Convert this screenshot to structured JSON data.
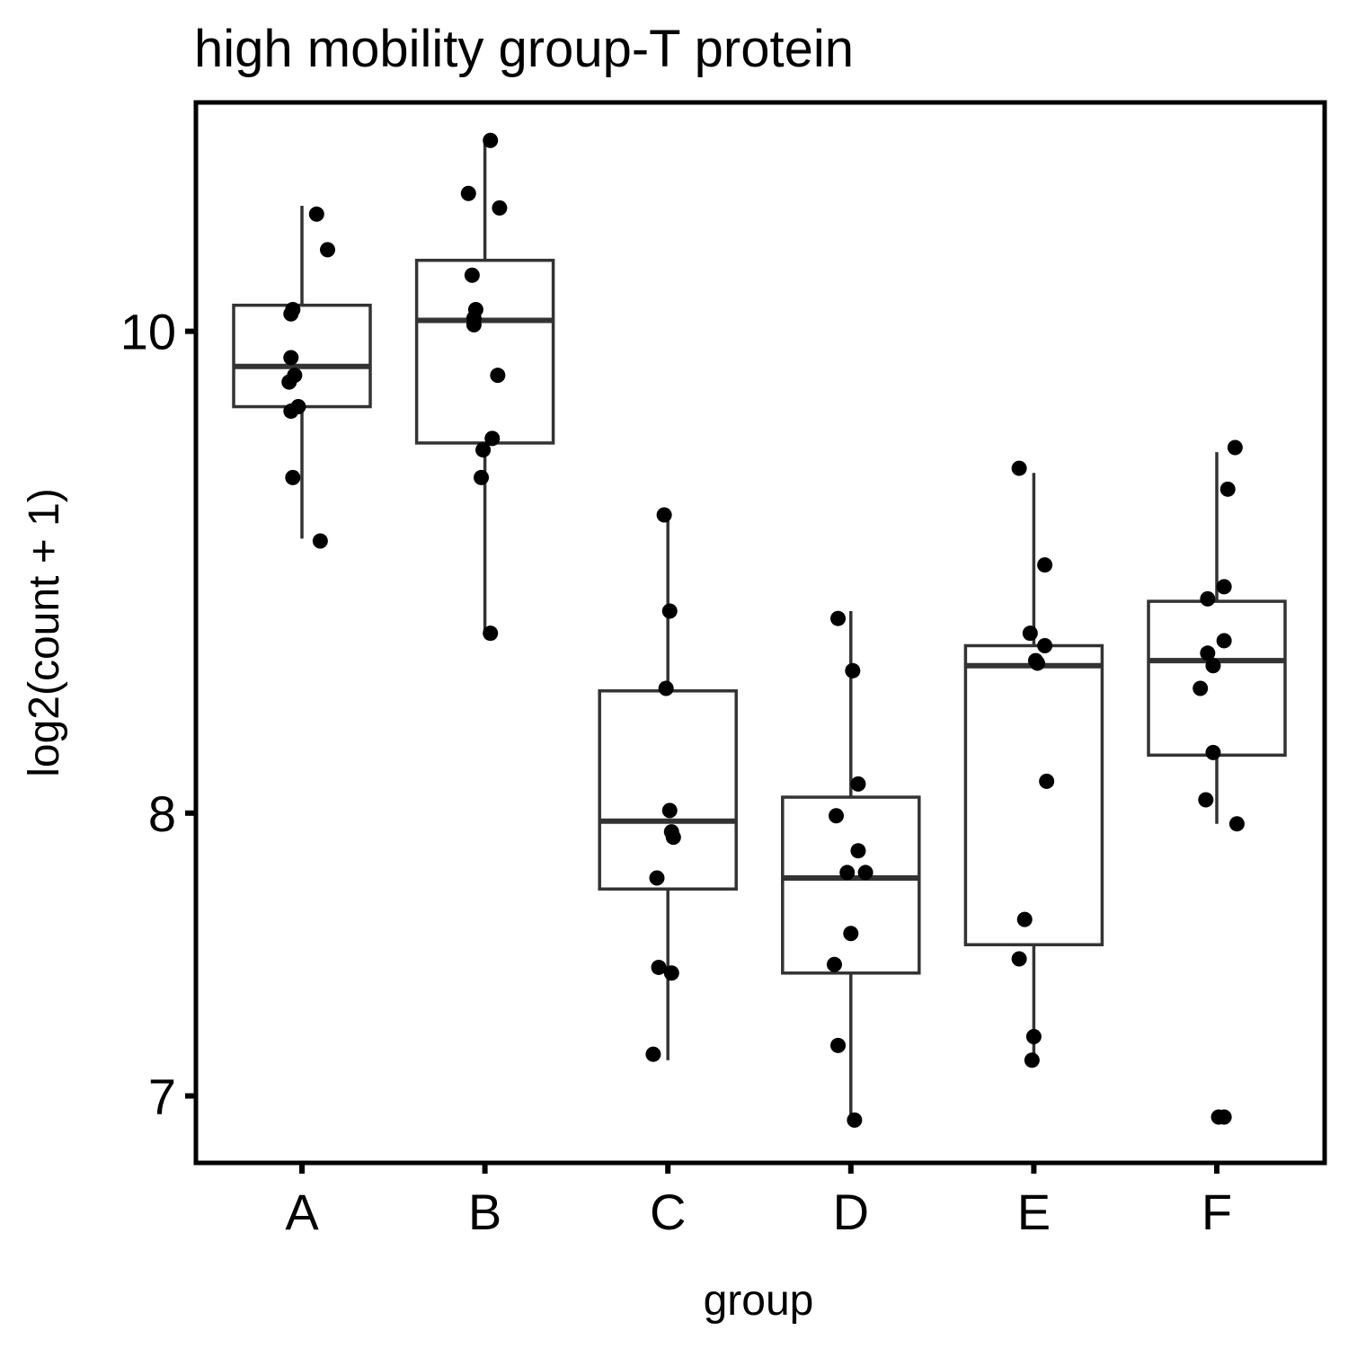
{
  "chart_data": {
    "type": "boxplot",
    "title": "high mobility group-T protein",
    "xlabel": "group",
    "ylabel": "log2(count + 1)",
    "y_scale": "log2",
    "ylim": [
      6.78,
      11.1
    ],
    "yticks": [
      7,
      8,
      10
    ],
    "grid": false,
    "categories": [
      "A",
      "B",
      "C",
      "D",
      "E",
      "F"
    ],
    "boxes": [
      {
        "group": "A",
        "whisker_low": 9.09,
        "q1": 9.66,
        "median": 9.84,
        "q3": 10.12,
        "whisker_high": 10.59
      },
      {
        "group": "B",
        "whisker_low": 8.7,
        "q1": 9.5,
        "median": 10.05,
        "q3": 10.33,
        "whisker_high": 10.9
      },
      {
        "group": "C",
        "whisker_low": 7.12,
        "q1": 7.72,
        "median": 7.97,
        "q3": 8.47,
        "whisker_high": 9.18
      },
      {
        "group": "D",
        "whisker_low": 6.92,
        "q1": 7.42,
        "median": 7.76,
        "q3": 8.06,
        "whisker_high": 8.79
      },
      {
        "group": "E",
        "whisker_low": 7.13,
        "q1": 7.52,
        "median": 8.57,
        "q3": 8.65,
        "whisker_high": 9.37
      },
      {
        "group": "F",
        "whisker_low": 7.96,
        "q1": 8.22,
        "median": 8.59,
        "q3": 8.83,
        "whisker_high": 9.46
      }
    ],
    "points": [
      {
        "group": "A",
        "jitter": 0.08,
        "y": 10.55
      },
      {
        "group": "A",
        "jitter": 0.14,
        "y": 10.38
      },
      {
        "group": "A",
        "jitter": -0.05,
        "y": 10.1
      },
      {
        "group": "A",
        "jitter": -0.06,
        "y": 10.08
      },
      {
        "group": "A",
        "jitter": -0.06,
        "y": 9.88
      },
      {
        "group": "A",
        "jitter": -0.04,
        "y": 9.8
      },
      {
        "group": "A",
        "jitter": -0.07,
        "y": 9.77
      },
      {
        "group": "A",
        "jitter": -0.02,
        "y": 9.66
      },
      {
        "group": "A",
        "jitter": -0.06,
        "y": 9.64
      },
      {
        "group": "A",
        "jitter": -0.05,
        "y": 9.35
      },
      {
        "group": "A",
        "jitter": 0.1,
        "y": 9.08
      },
      {
        "group": "B",
        "jitter": 0.03,
        "y": 10.91
      },
      {
        "group": "B",
        "jitter": -0.09,
        "y": 10.65
      },
      {
        "group": "B",
        "jitter": 0.08,
        "y": 10.58
      },
      {
        "group": "B",
        "jitter": -0.07,
        "y": 10.26
      },
      {
        "group": "B",
        "jitter": -0.05,
        "y": 10.1
      },
      {
        "group": "B",
        "jitter": -0.06,
        "y": 10.06
      },
      {
        "group": "B",
        "jitter": -0.06,
        "y": 10.03
      },
      {
        "group": "B",
        "jitter": 0.07,
        "y": 9.8
      },
      {
        "group": "B",
        "jitter": 0.04,
        "y": 9.52
      },
      {
        "group": "B",
        "jitter": -0.01,
        "y": 9.47
      },
      {
        "group": "B",
        "jitter": -0.02,
        "y": 9.35
      },
      {
        "group": "B",
        "jitter": 0.03,
        "y": 8.7
      },
      {
        "group": "C",
        "jitter": -0.02,
        "y": 9.19
      },
      {
        "group": "C",
        "jitter": 0.01,
        "y": 8.79
      },
      {
        "group": "C",
        "jitter": -0.01,
        "y": 8.48
      },
      {
        "group": "C",
        "jitter": 0.01,
        "y": 8.01
      },
      {
        "group": "C",
        "jitter": 0.02,
        "y": 7.93
      },
      {
        "group": "C",
        "jitter": 0.03,
        "y": 7.91
      },
      {
        "group": "C",
        "jitter": -0.06,
        "y": 7.76
      },
      {
        "group": "C",
        "jitter": -0.05,
        "y": 7.44
      },
      {
        "group": "C",
        "jitter": 0.02,
        "y": 7.42
      },
      {
        "group": "C",
        "jitter": -0.08,
        "y": 7.14
      },
      {
        "group": "D",
        "jitter": -0.07,
        "y": 8.76
      },
      {
        "group": "D",
        "jitter": 0.01,
        "y": 8.55
      },
      {
        "group": "D",
        "jitter": 0.04,
        "y": 8.11
      },
      {
        "group": "D",
        "jitter": -0.08,
        "y": 7.99
      },
      {
        "group": "D",
        "jitter": 0.04,
        "y": 7.86
      },
      {
        "group": "D",
        "jitter": -0.02,
        "y": 7.78
      },
      {
        "group": "D",
        "jitter": 0.08,
        "y": 7.78
      },
      {
        "group": "D",
        "jitter": 0.0,
        "y": 7.56
      },
      {
        "group": "D",
        "jitter": -0.09,
        "y": 7.45
      },
      {
        "group": "D",
        "jitter": -0.07,
        "y": 7.17
      },
      {
        "group": "D",
        "jitter": 0.02,
        "y": 6.92
      },
      {
        "group": "E",
        "jitter": -0.08,
        "y": 9.39
      },
      {
        "group": "E",
        "jitter": 0.06,
        "y": 8.98
      },
      {
        "group": "E",
        "jitter": -0.02,
        "y": 8.7
      },
      {
        "group": "E",
        "jitter": 0.06,
        "y": 8.65
      },
      {
        "group": "E",
        "jitter": 0.01,
        "y": 8.59
      },
      {
        "group": "E",
        "jitter": 0.02,
        "y": 8.58
      },
      {
        "group": "E",
        "jitter": 0.07,
        "y": 8.12
      },
      {
        "group": "E",
        "jitter": -0.05,
        "y": 7.61
      },
      {
        "group": "E",
        "jitter": -0.08,
        "y": 7.47
      },
      {
        "group": "E",
        "jitter": 0.0,
        "y": 7.2
      },
      {
        "group": "E",
        "jitter": -0.01,
        "y": 7.12
      },
      {
        "group": "F",
        "jitter": 0.1,
        "y": 9.48
      },
      {
        "group": "F",
        "jitter": 0.06,
        "y": 9.3
      },
      {
        "group": "F",
        "jitter": 0.04,
        "y": 8.89
      },
      {
        "group": "F",
        "jitter": -0.05,
        "y": 8.84
      },
      {
        "group": "F",
        "jitter": 0.04,
        "y": 8.67
      },
      {
        "group": "F",
        "jitter": -0.05,
        "y": 8.62
      },
      {
        "group": "F",
        "jitter": -0.02,
        "y": 8.57
      },
      {
        "group": "F",
        "jitter": -0.09,
        "y": 8.48
      },
      {
        "group": "F",
        "jitter": -0.02,
        "y": 8.23
      },
      {
        "group": "F",
        "jitter": -0.06,
        "y": 8.05
      },
      {
        "group": "F",
        "jitter": 0.11,
        "y": 7.96
      },
      {
        "group": "F",
        "jitter": 0.01,
        "y": 6.93
      },
      {
        "group": "F",
        "jitter": 0.04,
        "y": 6.93
      }
    ]
  }
}
